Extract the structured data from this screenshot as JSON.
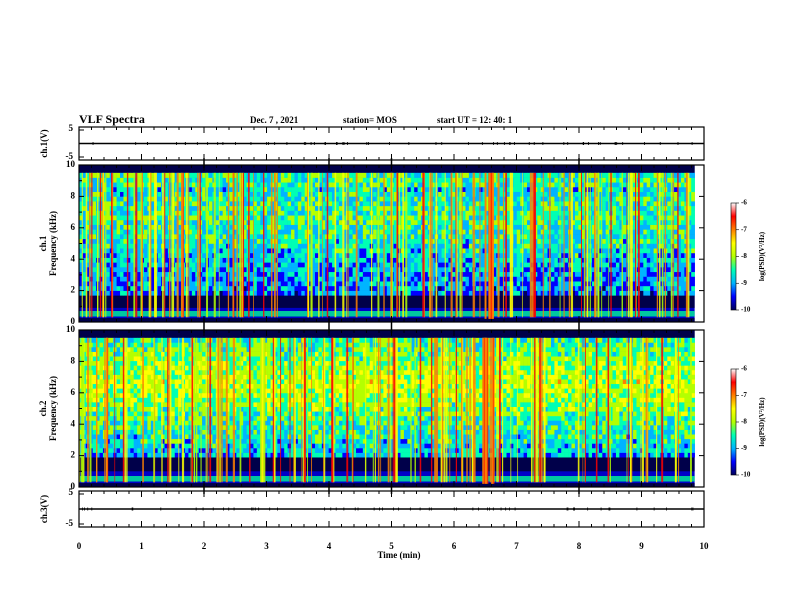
{
  "header": {
    "title": "VLF Spectra",
    "date": "Dec. 7 , 2021",
    "station": "station= MOS",
    "start": "start  UT  =   12: 40: 1"
  },
  "colors": {
    "colormap": [
      "#00005a",
      "#0000ff",
      "#00b4ff",
      "#00ffb4",
      "#b4ff00",
      "#ffff00",
      "#ff8000",
      "#ff0000",
      "#ffffff"
    ]
  },
  "chart_data": [
    {
      "type": "line",
      "name": "channel-1-waveform",
      "ylabel": "ch.1(V)",
      "yticks": [
        "5",
        "-5"
      ],
      "ylim": [
        -5,
        5
      ],
      "x": [
        0,
        10
      ],
      "y": [
        0,
        0
      ],
      "xlim": [
        0,
        10
      ]
    },
    {
      "type": "heatmap",
      "name": "channel-1-spectrogram",
      "ylabel": [
        "ch.1",
        "Frequency  (kHz)"
      ],
      "ylim": [
        0,
        10
      ],
      "yticks": [
        "0",
        "2",
        "4",
        "6",
        "8",
        "10"
      ],
      "xlim": [
        0,
        10
      ],
      "data_end_min": 9.85,
      "colorbar": {
        "label": "log(PSD)(V²/Hz)",
        "range": [
          -10,
          -6
        ],
        "ticks": [
          "-6",
          "-7",
          "-8",
          "-9",
          "-10"
        ]
      }
    },
    {
      "type": "heatmap",
      "name": "channel-2-spectrogram",
      "ylabel": [
        "ch.2",
        "Frequency  (kHz)"
      ],
      "ylim": [
        0,
        10
      ],
      "yticks": [
        "0",
        "2",
        "4",
        "6",
        "8",
        "10"
      ],
      "xlim": [
        0,
        10
      ],
      "data_end_min": 9.85,
      "colorbar": {
        "label": "log(PSD)(V²/Hz)",
        "range": [
          -10,
          -6
        ],
        "ticks": [
          "-6",
          "-7",
          "-8",
          "-9",
          "-10"
        ]
      }
    },
    {
      "type": "line",
      "name": "channel-3-waveform",
      "ylabel": "ch.3(V)",
      "yticks": [
        "5",
        "-5"
      ],
      "ylim": [
        -5,
        5
      ],
      "x": [
        0,
        10
      ],
      "y": [
        0,
        0
      ],
      "xlim": [
        0,
        10
      ]
    }
  ],
  "xaxis": {
    "label": "Time  (min)",
    "ticks": [
      "0",
      "1",
      "2",
      "3",
      "4",
      "5",
      "6",
      "7",
      "8",
      "9",
      "10"
    ]
  }
}
